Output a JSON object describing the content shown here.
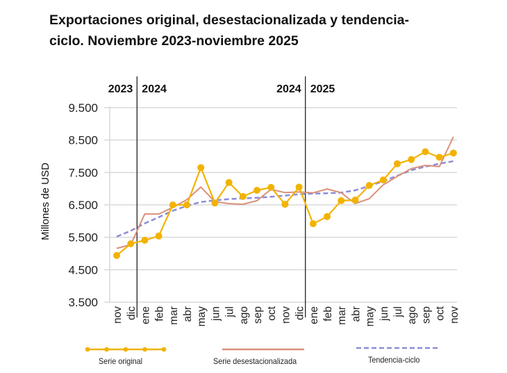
{
  "chart_data": {
    "type": "line",
    "title": "Exportaciones original, desestacionalizada y tendencia-ciclo. Noviembre 2023-noviembre 2025",
    "title_lines": [
      "Exportaciones original, desestacionalizada y tendencia-",
      "ciclo. Noviembre 2023-noviembre 2025"
    ],
    "xlabel": "",
    "ylabel": "Millones de USD",
    "ylim": [
      3500,
      9500
    ],
    "yticks": [
      3500,
      4500,
      5500,
      6500,
      7500,
      8500,
      9500
    ],
    "ytick_labels": [
      "3.500",
      "4.500",
      "5.500",
      "6.500",
      "7.500",
      "8.500",
      "9.500"
    ],
    "grid": true,
    "categories": [
      "nov",
      "dic",
      "ene",
      "feb",
      "mar",
      "abr",
      "may",
      "jun",
      "jul",
      "ago",
      "sep",
      "oct",
      "nov",
      "dic",
      "ene",
      "feb",
      "mar",
      "abr",
      "may",
      "jun",
      "jul",
      "ago",
      "sep",
      "oct",
      "nov"
    ],
    "year_dividers": [
      {
        "after_index": 1,
        "left_label": "2023",
        "right_label": "2024"
      },
      {
        "after_index": 13,
        "left_label": "2024",
        "right_label": "2025"
      }
    ],
    "series": [
      {
        "name": "Serie original",
        "color": "#F2B300",
        "style": "line-markers",
        "values": [
          4940,
          5300,
          5410,
          5540,
          6500,
          6500,
          7650,
          6560,
          7190,
          6760,
          6950,
          7040,
          6520,
          7050,
          5920,
          6140,
          6630,
          6650,
          7100,
          7270,
          7770,
          7900,
          8140,
          7970,
          8100
        ]
      },
      {
        "name": "Serie desestacionalizada",
        "color": "#D9907A",
        "style": "line",
        "values": [
          5160,
          5270,
          6220,
          6220,
          6420,
          6660,
          7050,
          6600,
          6540,
          6520,
          6630,
          6980,
          6880,
          6900,
          6870,
          6990,
          6880,
          6540,
          6690,
          7120,
          7380,
          7620,
          7720,
          7680,
          8600
        ]
      },
      {
        "name": "Tendencia-ciclo",
        "color": "#8C8CD6",
        "style": "dashed",
        "values": [
          5520,
          5700,
          5930,
          6120,
          6320,
          6470,
          6590,
          6640,
          6680,
          6700,
          6720,
          6750,
          6790,
          6830,
          6850,
          6860,
          6880,
          6950,
          7080,
          7230,
          7400,
          7570,
          7680,
          7770,
          7850
        ]
      }
    ],
    "legend_position": "bottom"
  }
}
